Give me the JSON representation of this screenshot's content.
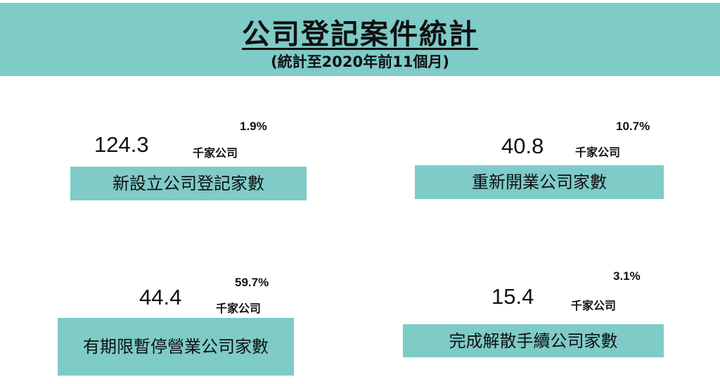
{
  "header": {
    "title": "公司登記案件統計",
    "subtitle": "(統計至2020年前11個月)"
  },
  "stats": [
    {
      "value": "124.3",
      "percent": "1.9%",
      "unit": "千家公司",
      "label": "新設立公司登記家數"
    },
    {
      "value": "40.8",
      "percent": "10.7%",
      "unit": "千家公司",
      "label": "重新開業公司家數"
    },
    {
      "value": "44.4",
      "percent": "59.7%",
      "unit": "千家公司",
      "label": "有期限暫停營業公司家數"
    },
    {
      "value": "15.4",
      "percent": "3.1%",
      "unit": "千家公司",
      "label": "完成解散手續公司家數"
    }
  ],
  "colors": {
    "accent": "#7ecbc8",
    "text": "#111111",
    "background": "#ffffff"
  }
}
